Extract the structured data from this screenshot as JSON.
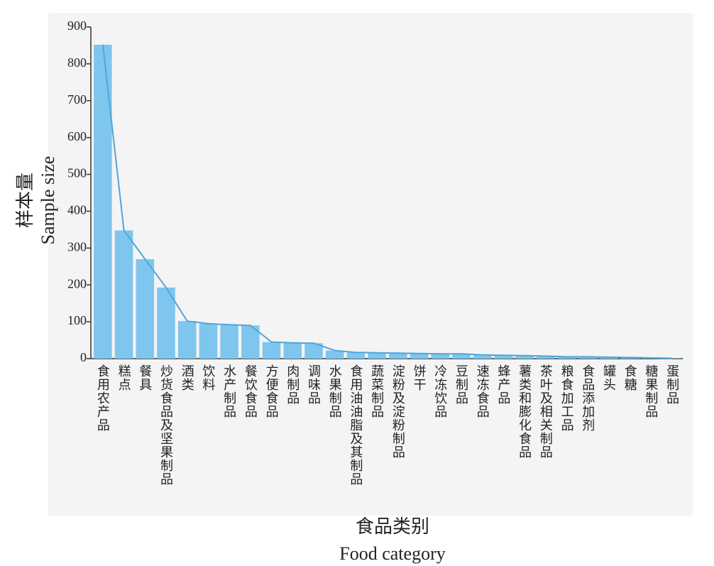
{
  "chart_data": {
    "type": "bar",
    "overlay_line": true,
    "ylabel": [
      "样本量",
      "Sample size"
    ],
    "xlabel": [
      "食品类别",
      "Food category"
    ],
    "categories": [
      "食用农产品",
      "糕点",
      "餐具",
      "炒货食品及坚果制品",
      "酒类",
      "饮料",
      "水产制品",
      "餐饮食品",
      "方便食品",
      "肉制品",
      "调味品",
      "水果制品",
      "食用油油脂及其制品",
      "蔬菜制品",
      "淀粉及淀粉制品",
      "饼干",
      "冷冻饮品",
      "豆制品",
      "速冻食品",
      "蜂产品",
      "薯类和膨化食品",
      "茶叶及相关制品",
      "粮食加工品",
      "食品添加剂",
      "罐头",
      "食糖",
      "糖果制品",
      "蛋制品"
    ],
    "values": [
      852,
      348,
      270,
      193,
      102,
      95,
      92,
      90,
      45,
      43,
      42,
      22,
      17,
      16,
      15,
      14,
      13,
      13,
      10,
      9,
      8,
      7,
      5,
      5,
      4,
      3,
      2,
      1
    ],
    "color": "#7ec6ee",
    "line_color": "#4fa6dc",
    "ylim": [
      0,
      900
    ],
    "yticks": [
      0,
      100,
      200,
      300,
      400,
      500,
      600,
      700,
      800,
      900
    ]
  }
}
